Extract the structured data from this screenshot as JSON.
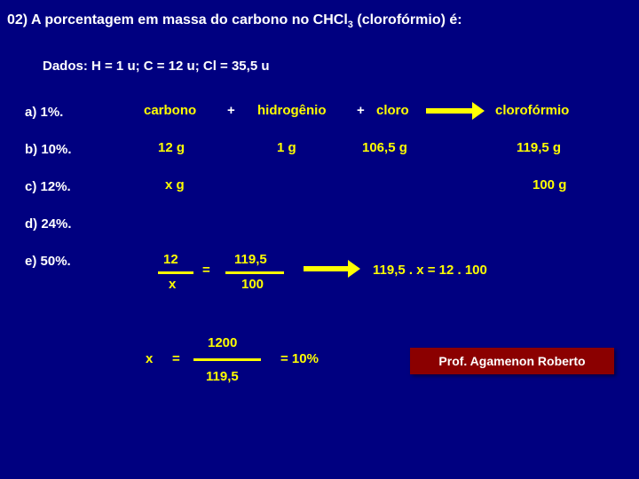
{
  "question": {
    "prefix": "02) A  porcentagem  em massa  do carbono no CHCl",
    "sub": "3",
    "suffix": "  (clorofórmio) é:"
  },
  "dados": "Dados: H = 1 u; C = 12 u; Cl = 35,5 u",
  "options": {
    "a": "a)  1%.",
    "b": "b)  10%.",
    "c": "c)  12%.",
    "d": "d)  24%.",
    "e": "e)  50%."
  },
  "headers": {
    "carbono": "carbono",
    "plus1": "+",
    "hidro": "hidrogênio",
    "plus2": "+",
    "cloro": "cloro",
    "chcl3": "clorofórmio"
  },
  "row1": {
    "c1": "12 g",
    "c2": "1 g",
    "c3": "106,5 g",
    "c4": "119,5 g"
  },
  "row2": {
    "c1": "x g",
    "c4": "100 g"
  },
  "frac1a": {
    "num": "12",
    "den": "x"
  },
  "eq1": "=",
  "frac1b": {
    "num": "119,5",
    "den": "100"
  },
  "rhs1": "119,5  .  x  =  12  .  100",
  "frac2": {
    "x": "x",
    "eq": "=",
    "num": "1200",
    "den": "119,5"
  },
  "result": "= 10%",
  "credit": "Prof. Agamenon Roberto",
  "colors": {
    "bg": "#000080",
    "text": "#ffffff",
    "highlight": "#ffff00",
    "credit_bg": "#8b0000"
  }
}
